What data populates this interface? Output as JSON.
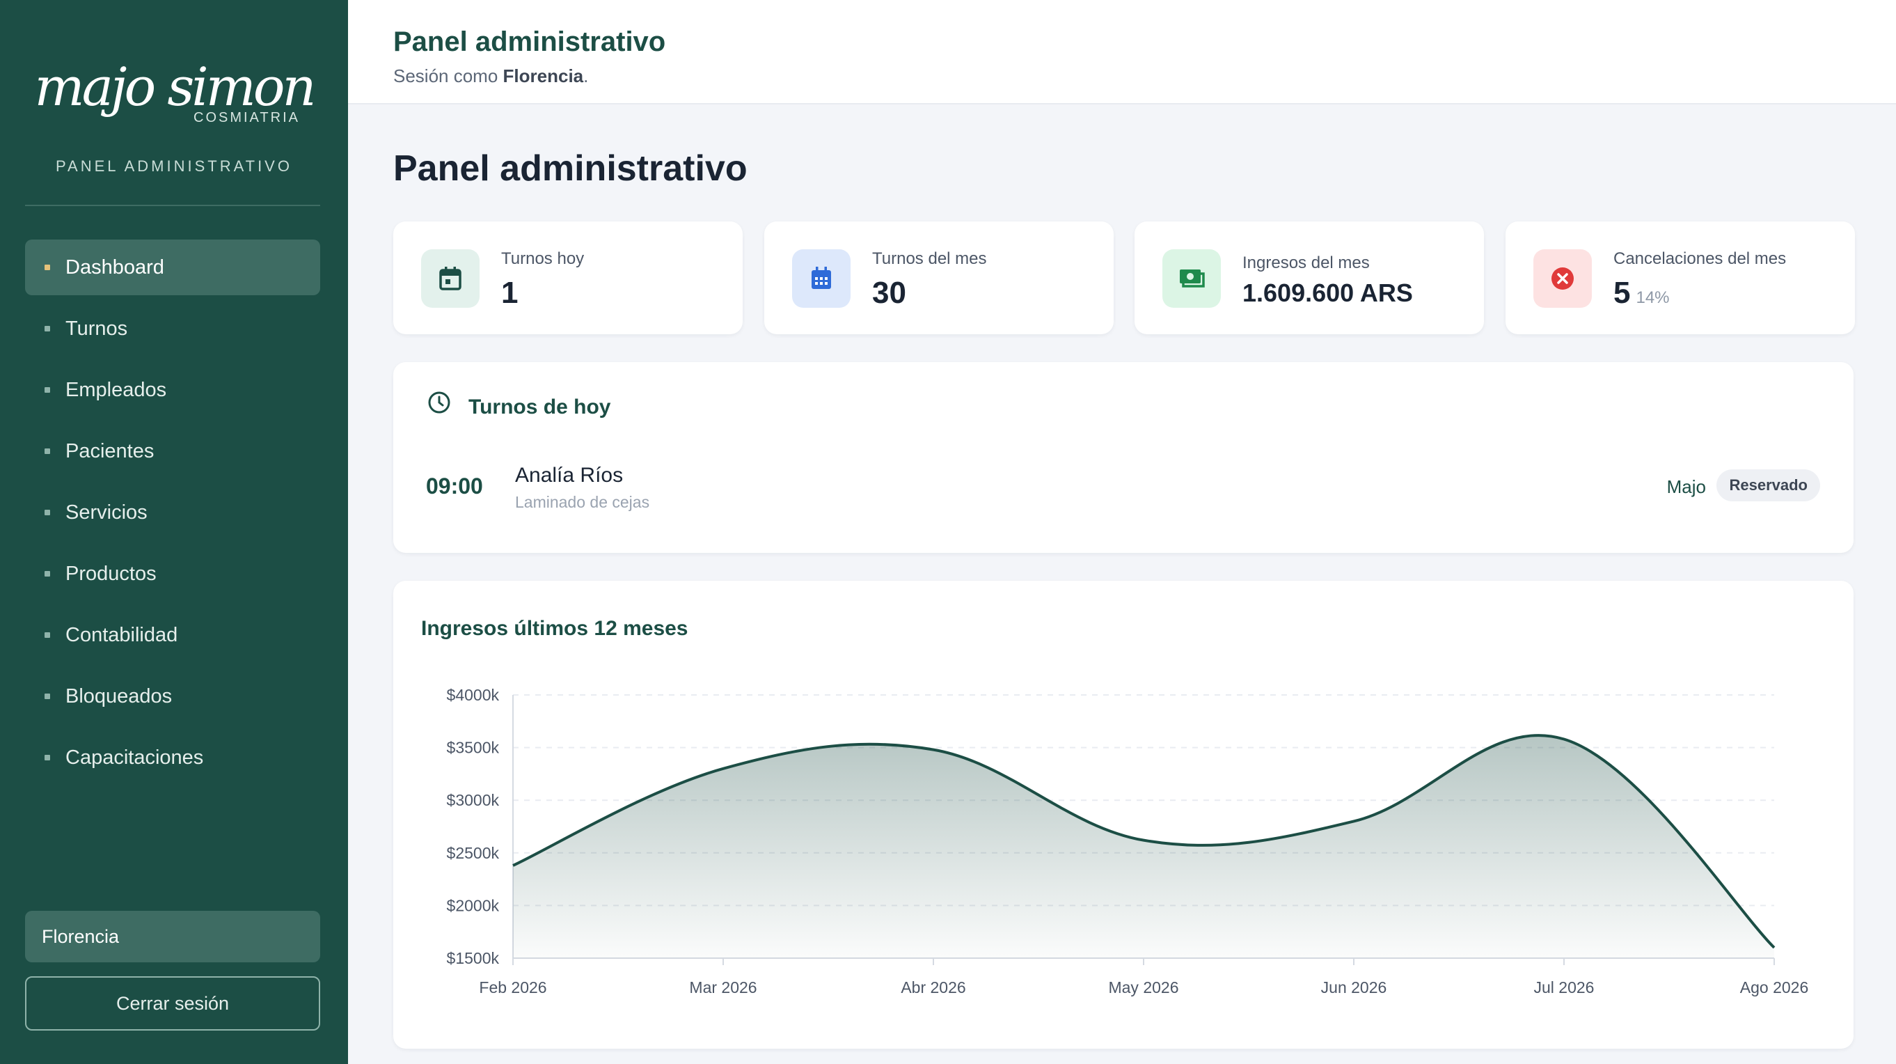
{
  "brand": {
    "logo_main": "majo simon",
    "logo_sub": "COSMIATRIA",
    "subtitle": "PANEL ADMINISTRATIVO"
  },
  "sidebar": {
    "items": [
      {
        "label": "Dashboard",
        "active": true
      },
      {
        "label": "Turnos"
      },
      {
        "label": "Empleados"
      },
      {
        "label": "Pacientes"
      },
      {
        "label": "Servicios"
      },
      {
        "label": "Productos"
      },
      {
        "label": "Contabilidad"
      },
      {
        "label": "Bloqueados"
      },
      {
        "label": "Capacitaciones"
      }
    ],
    "user_name": "Florencia",
    "logout_label": "Cerrar sesión"
  },
  "header": {
    "title": "Panel administrativo",
    "session_prefix": "Sesión como",
    "session_user": "Florencia",
    "session_suffix": "."
  },
  "page_title": "Panel administrativo",
  "stats": [
    {
      "label": "Turnos hoy",
      "value": "1",
      "icon": "calendar-icon",
      "color": "#1c4e45",
      "bg": "#e3f1ec"
    },
    {
      "label": "Turnos del mes",
      "value": "30",
      "icon": "calendar-grid-icon",
      "color": "#2f6bd8",
      "bg": "#dde8fb"
    },
    {
      "label": "Ingresos del mes",
      "value": "1.609.600 ARS",
      "icon": "money-icon",
      "color": "#1f8a4c",
      "bg": "#dcf5e5"
    },
    {
      "label": "Cancelaciones del mes",
      "value": "5",
      "extra": "14%",
      "icon": "cancel-icon",
      "color": "#e03a3a",
      "bg": "#fde2e2"
    }
  ],
  "today": {
    "title": "Turnos de hoy",
    "appointments": [
      {
        "time": "09:00",
        "patient": "Analía Ríos",
        "service": "Laminado de cejas",
        "staff": "Majo",
        "status": "Reservado"
      }
    ]
  },
  "chart_data": {
    "type": "area",
    "title": "Ingresos últimos 12 meses",
    "categories": [
      "Feb 2026",
      "Mar 2026",
      "Abr 2026",
      "May 2026",
      "Jun 2026",
      "Jul 2026",
      "Ago 2026"
    ],
    "yticks": [
      "$1500k",
      "$2000k",
      "$2500k",
      "$3000k",
      "$3500k",
      "$4000k"
    ],
    "ylim": [
      1500,
      4000
    ],
    "series": [
      {
        "values": [
          2380,
          3300,
          3480,
          2620,
          2800,
          3580,
          1600
        ]
      }
    ],
    "color": "#1c4e45",
    "grid": true
  }
}
